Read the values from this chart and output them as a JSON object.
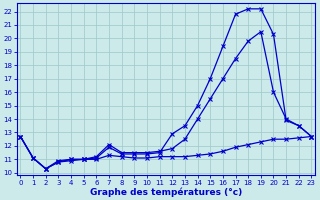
{
  "title": "Graphe des températures (°c)",
  "background_color": "#cceaea",
  "grid_color": "#9ec8c8",
  "line_color": "#0000cc",
  "hours": [
    0,
    1,
    2,
    3,
    4,
    5,
    6,
    7,
    8,
    9,
    10,
    11,
    12,
    13,
    14,
    15,
    16,
    17,
    18,
    19,
    20,
    21,
    22,
    23
  ],
  "line1": [
    12.7,
    11.1,
    10.3,
    10.8,
    10.9,
    11.0,
    11.0,
    11.3,
    11.2,
    11.1,
    11.1,
    11.2,
    11.2,
    11.2,
    11.3,
    11.4,
    11.6,
    11.9,
    12.1,
    12.3,
    12.5,
    12.5,
    12.6,
    12.7
  ],
  "line2": [
    12.7,
    11.1,
    10.3,
    10.8,
    11.0,
    11.0,
    11.1,
    11.9,
    11.4,
    11.4,
    11.4,
    11.5,
    12.9,
    13.5,
    15.0,
    17.0,
    19.4,
    21.8,
    22.2,
    22.2,
    20.3,
    13.9,
    13.5,
    12.7
  ],
  "line3": [
    12.7,
    11.1,
    10.3,
    10.9,
    11.0,
    11.0,
    11.2,
    12.1,
    11.5,
    11.5,
    11.5,
    11.6,
    11.8,
    12.5,
    14.0,
    15.5,
    17.0,
    18.5,
    19.8,
    20.5,
    16.0,
    14.0,
    13.5,
    12.7
  ],
  "ylim_min": 9.8,
  "ylim_max": 22.6,
  "yticks": [
    10,
    11,
    12,
    13,
    14,
    15,
    16,
    17,
    18,
    19,
    20,
    21,
    22
  ],
  "xlim_min": -0.3,
  "xlim_max": 23.3,
  "tick_fontsize": 5,
  "xlabel_fontsize": 6.5,
  "linewidth": 0.9,
  "markersize": 2.5
}
